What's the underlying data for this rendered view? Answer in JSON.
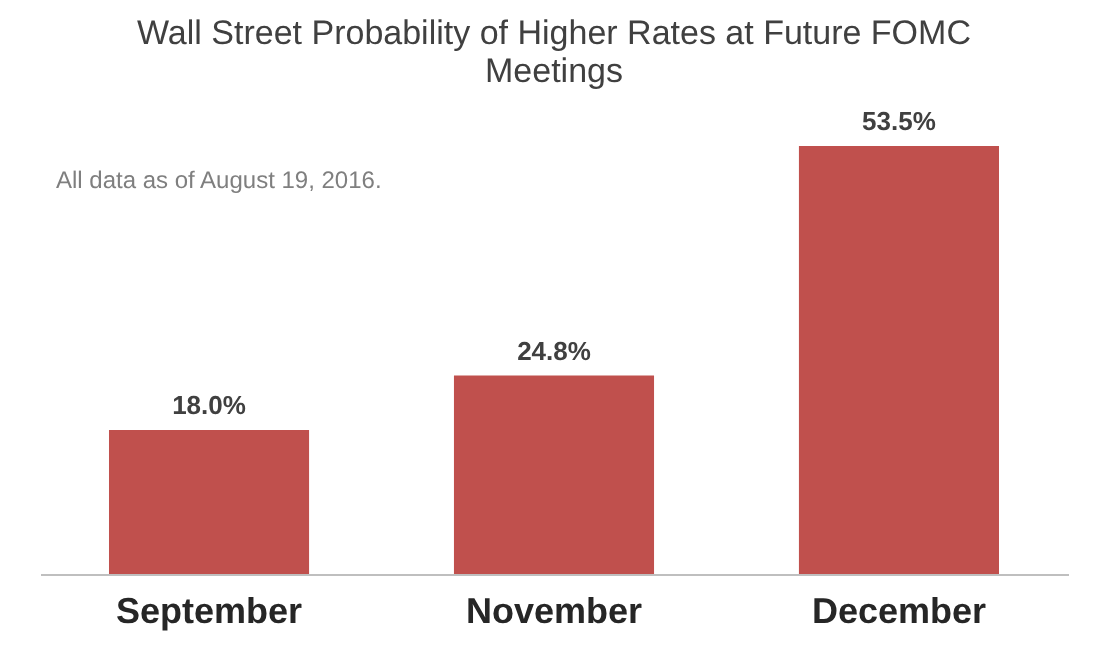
{
  "chart_data": {
    "type": "bar",
    "title": "Wall Street Probability of Higher Rates at Future FOMC Meetings",
    "categories": [
      "September",
      "November",
      "December"
    ],
    "values": [
      18.0,
      24.8,
      53.5
    ],
    "value_labels": [
      "18.0%",
      "24.8%",
      "53.5%"
    ],
    "color": "#c0504d",
    "annotations": [
      "All data as of August 19, 2016."
    ]
  }
}
